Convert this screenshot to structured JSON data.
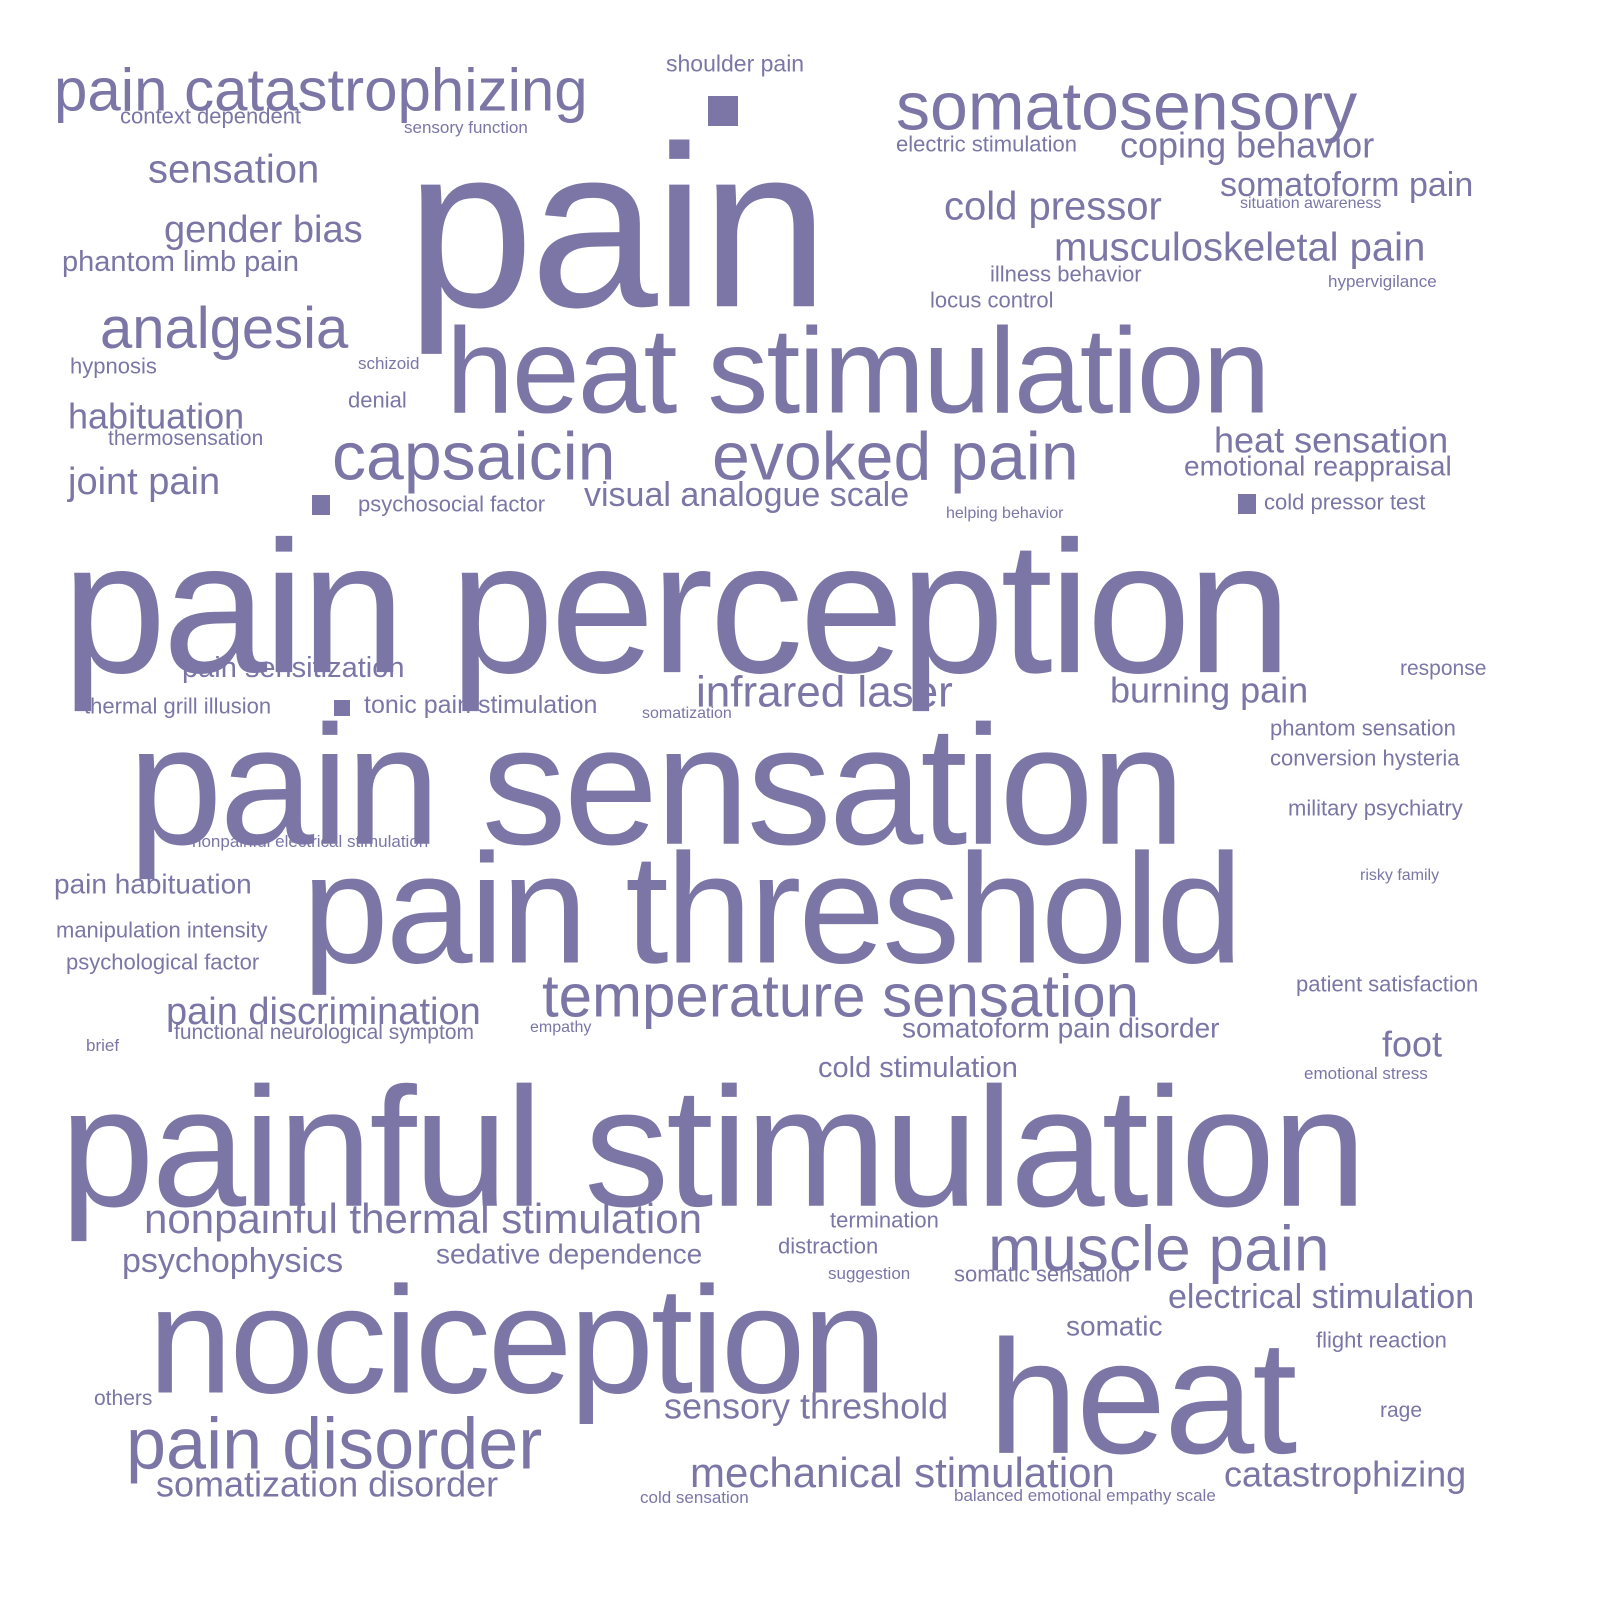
{
  "colors": {
    "word": "#7b76a6",
    "background": "#ffffff"
  },
  "words": [
    "pain",
    "pain perception",
    "pain sensation",
    "pain threshold",
    "painful stimulation",
    "nociception",
    "heat",
    "heat stimulation",
    "capsaicin",
    "evoked pain",
    "somatosensory",
    "pain catastrophizing",
    "pain disorder",
    "muscle pain",
    "temperature sensation",
    "analgesia",
    "infrared laser",
    "sensation",
    "gender bias",
    "cold pressor",
    "musculoskeletal pain",
    "coping behavior",
    "somatoform pain",
    "heat sensation",
    "burning pain",
    "visual analogue scale",
    "nonpainful thermal stimulation",
    "mechanical stimulation",
    "catastrophizing",
    "habituation",
    "pain discrimination",
    "somatization disorder",
    "joint pain",
    "psychophysics",
    "foot",
    "electrical stimulation",
    "sensory threshold",
    "emotional reappraisal",
    "phantom limb pain",
    "pain sensitization",
    "sedative dependence",
    "pain habituation",
    "somatoform pain disorder",
    "cold stimulation",
    "somatic",
    "tonic pain stimulation",
    "illness behavior",
    "locus control",
    "electric stimulation",
    "shoulder pain",
    "context dependent",
    "phantom sensation",
    "conversion hysteria",
    "military psychiatry",
    "manipulation intensity",
    "psychological factor",
    "thermal grill illusion",
    "somatic sensation",
    "cold pressor test",
    "psychosocial factor",
    "thermosensation",
    "patient satisfaction",
    "flight reaction",
    "hypnosis",
    "denial",
    "response",
    "termination",
    "distraction",
    "rage",
    "others",
    "sensory function",
    "situation awareness",
    "hypervigilance",
    "schizoid",
    "helping behavior",
    "somatization",
    "nonpainful electrical stimulation",
    "risky family",
    "functional neurological symptom",
    "empathy",
    "brief",
    "emotional stress",
    "suggestion",
    "cold sensation",
    "balanced emotional empathy scale"
  ]
}
